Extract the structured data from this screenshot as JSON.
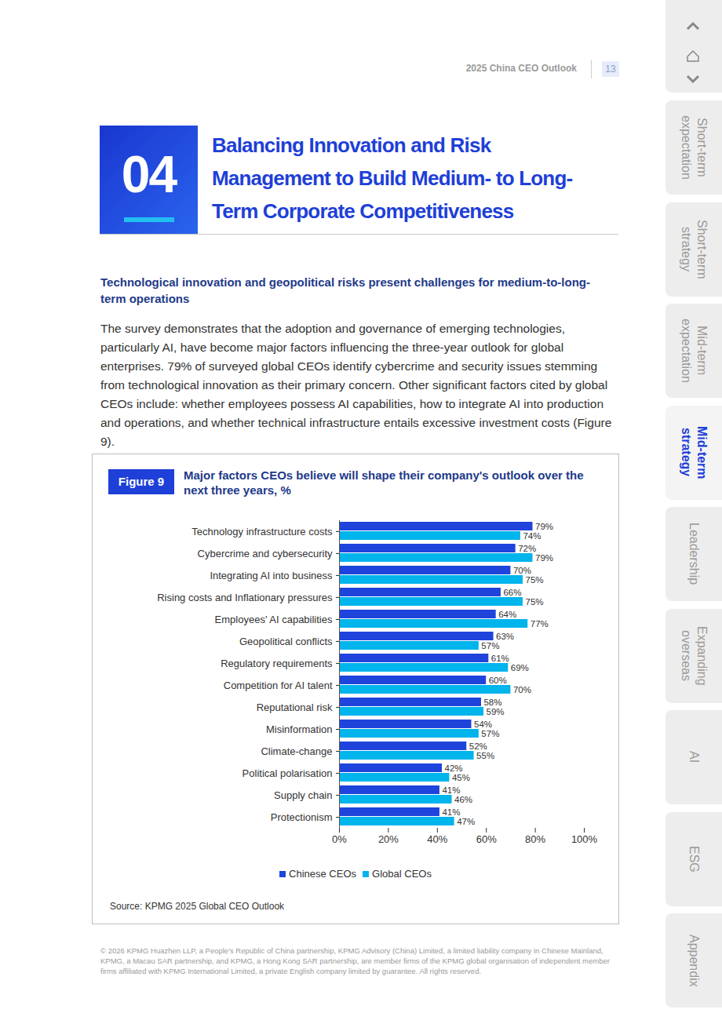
{
  "page": {
    "header": "2025 China CEO Outlook",
    "page_number": "13",
    "section_number": "04",
    "section_title": [
      "Balancing Innovation and Risk",
      "Management to Build Medium- to Long-",
      "Term Corporate Competitiveness"
    ],
    "subheading": "Technological innovation and geopolitical risks present challenges for medium-to-long-term operations",
    "paragraph": "The survey demonstrates that the adoption and governance of emerging technologies, particularly AI, have become major factors influencing the three-year outlook for global enterprises. 79% of surveyed global CEOs identify cybercrime and security issues stemming from technological innovation as their primary concern. Other significant factors cited by global CEOs include: whether employees possess AI capabilities, how to integrate AI into production and operations, and whether technical infrastructure entails excessive investment costs (Figure 9).",
    "nav": [
      {
        "label": "Short-term expectation"
      },
      {
        "label": "Short-term strategy"
      },
      {
        "label": "Mid-term expectation"
      },
      {
        "label": "Mid-term strategy",
        "current": true
      },
      {
        "label": "Leadership"
      },
      {
        "label": "Expanding overseas"
      },
      {
        "label": "AI"
      },
      {
        "label": "ESG"
      },
      {
        "label": "Appendix"
      }
    ],
    "footer": "© 2026 KPMG Huazhen LLP, a People's Republic of China partnership, KPMG Advisory (China) Limited, a limited liability company in Chinese Mainland, KPMG, a Macau SAR partnership, and KPMG, a Hong Kong SAR partnership, are member firms of the KPMG global organisation of independent member firms affiliated with KPMG International Limited, a private English company limited by guarantee. All rights reserved."
  },
  "chart_data": {
    "type": "bar",
    "orientation": "horizontal",
    "figure_label": "Figure 9",
    "title": "Major factors CEOs believe will shape their company's outlook over the next three years, %",
    "source": "Source: KPMG 2025 Global CEO Outlook",
    "categories": [
      "Technology infrastructure costs",
      "Cybercrime and cybersecurity",
      "Integrating AI into business",
      "Rising costs and Inflationary pressures",
      "Employees' AI capabilities",
      "Geopolitical conflicts",
      "Regulatory requirements",
      "Competition for AI talent",
      "Reputational risk",
      "Misinformation",
      "Climate-change",
      "Political polarisation",
      "Supply chain",
      "Protectionism"
    ],
    "series": [
      {
        "name": "Chinese CEOs",
        "color": "#1e44dc",
        "values": [
          79,
          72,
          70,
          66,
          64,
          63,
          61,
          60,
          58,
          54,
          52,
          42,
          41,
          41
        ],
        "value_labels": [
          "79%",
          "72%",
          "70%",
          "66%",
          "64%",
          "63%",
          "61%",
          "60%",
          "58%",
          "54%",
          "52%",
          "42%",
          "41%",
          "41%"
        ]
      },
      {
        "name": "Global CEOs",
        "color": "#00b4ec",
        "values": [
          74,
          79,
          75,
          75,
          77,
          57,
          69,
          70,
          59,
          57,
          55,
          45,
          46,
          47
        ],
        "value_labels": [
          "74%",
          "79%",
          "75%",
          "75%",
          "77%",
          "57%",
          "69%",
          "70%",
          "59%",
          "57%",
          "55%",
          "45%",
          "46%",
          "47%"
        ]
      }
    ],
    "xlim": [
      0,
      100
    ],
    "xticks": [
      {
        "value": 0,
        "label": "0%"
      },
      {
        "value": 20,
        "label": "20%"
      },
      {
        "value": 40,
        "label": "40%"
      },
      {
        "value": 60,
        "label": "60%"
      },
      {
        "value": 80,
        "label": "80%"
      },
      {
        "value": 100,
        "label": "100%"
      }
    ],
    "grid": false,
    "data_labels": true,
    "legend": "bottom"
  }
}
